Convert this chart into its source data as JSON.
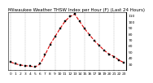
{
  "title": "Milwaukee Weather THSW Index per Hour (F) (Last 24 Hours)",
  "hours": [
    0,
    1,
    2,
    3,
    4,
    5,
    6,
    7,
    8,
    9,
    10,
    11,
    12,
    13,
    14,
    15,
    16,
    17,
    18,
    19,
    20,
    21,
    22,
    23
  ],
  "values": [
    33,
    30,
    28,
    27,
    26,
    25,
    30,
    45,
    62,
    75,
    88,
    100,
    108,
    112,
    100,
    88,
    78,
    68,
    60,
    52,
    46,
    42,
    36,
    32
  ],
  "line_color": "#dd0000",
  "marker_color": "#000000",
  "bg_color": "#ffffff",
  "plot_bg": "#ffffff",
  "grid_color": "#888888",
  "title_color": "#000000",
  "tick_color": "#000000",
  "ylim": [
    20,
    115
  ],
  "ytick_min": 30,
  "ytick_max": 110,
  "ytick_step": 10,
  "title_fontsize": 4.0,
  "tick_fontsize": 3.2,
  "line_width": 0.8,
  "marker_size": 1.5,
  "grid_positions": [
    0,
    3,
    6,
    9,
    12,
    15,
    18,
    21
  ]
}
